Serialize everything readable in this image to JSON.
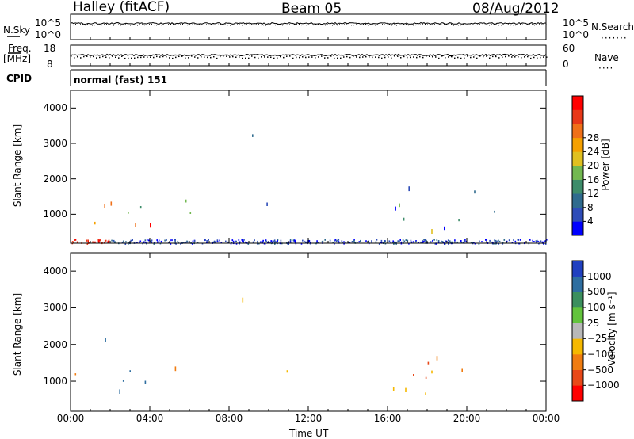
{
  "header": {
    "station": "Halley (fitACF)",
    "beam": "Beam 05",
    "date": "08/Aug/2012"
  },
  "strip_labels": {
    "nsky": "N.Sky",
    "nsky_ticks": [
      "10^5",
      "10^0"
    ],
    "nsearch": "N.Search",
    "freq_line1": "Freq.",
    "freq_line2": "[MHz]",
    "freq_ticks": [
      "18",
      "8"
    ],
    "nave": "Nave",
    "nave_ticks": [
      "60",
      "0"
    ],
    "cpid": "CPID",
    "cpid_value": "normal (fast) 151"
  },
  "chart_data": [
    {
      "type": "heatmap",
      "title": "",
      "xlabel": "",
      "ylabel": "Slant Range [km]",
      "x_ticks": [
        "00:00",
        "04:00",
        "08:00",
        "12:00",
        "16:00",
        "20:00",
        "00:00"
      ],
      "xlim_hours": [
        0,
        24
      ],
      "y_ticks": [
        1000,
        2000,
        3000,
        4000
      ],
      "ylim": [
        180,
        4500
      ],
      "colorbar": {
        "label": "Power [dB]",
        "ticks": [
          "4",
          "8",
          "12",
          "16",
          "20",
          "24",
          "28"
        ],
        "range": [
          0,
          30
        ],
        "colors": [
          "#0000ff",
          "#2e4cb8",
          "#2f6b8e",
          "#3d8c6a",
          "#72b850",
          "#e0c020",
          "#f5a000",
          "#f07018",
          "#e83818",
          "#ff0000"
        ]
      },
      "scatter_regions": [
        {
          "t": [
            0.2,
            1.6
          ],
          "r": [
            600,
            1500
          ],
          "level": 0.55
        },
        {
          "t": [
            1.6,
            3.2
          ],
          "r": [
            600,
            2200
          ],
          "level": 0.6
        },
        {
          "t": [
            2.6,
            4.6
          ],
          "r": [
            700,
            1400
          ],
          "level": 0.75
        },
        {
          "t": [
            3.2,
            6.4
          ],
          "r": [
            700,
            1500
          ],
          "level": 0.45
        },
        {
          "t": [
            8.6,
            9.5
          ],
          "r": [
            3000,
            3500
          ],
          "level": 0.2
        },
        {
          "t": [
            9.6,
            11.8
          ],
          "r": [
            800,
            1400
          ],
          "level": 0.4
        },
        {
          "t": [
            16.2,
            22.2
          ],
          "r": [
            500,
            1800
          ],
          "level": 0.3
        }
      ],
      "ground_scatter_band": {
        "t": [
          0,
          24
        ],
        "r": [
          180,
          300
        ]
      }
    },
    {
      "type": "heatmap",
      "title": "",
      "xlabel": "Time UT",
      "ylabel": "Slant Range [km]",
      "x_ticks": [
        "00:00",
        "04:00",
        "08:00",
        "12:00",
        "16:00",
        "20:00",
        "00:00"
      ],
      "xlim_hours": [
        0,
        24
      ],
      "y_ticks": [
        1000,
        2000,
        3000,
        4000
      ],
      "ylim": [
        180,
        4500
      ],
      "colorbar": {
        "label": "Velocity [m s⁻¹]",
        "ticks": [
          "1000",
          "500",
          "100",
          "25",
          "−25",
          "−100",
          "−500",
          "−1000"
        ],
        "colors": [
          "#2040c0",
          "#2e6ea0",
          "#3b8f5e",
          "#62c33c",
          "#b8b8b8",
          "#f5b800",
          "#f07c10",
          "#e84818",
          "#ff0000"
        ]
      },
      "scatter_regions": [
        {
          "t": [
            0.2,
            1.6
          ],
          "r": [
            600,
            1500
          ],
          "sign": "mixed"
        },
        {
          "t": [
            1.6,
            3.2
          ],
          "r": [
            600,
            2200
          ],
          "sign": "mixed"
        },
        {
          "t": [
            2.6,
            6.4
          ],
          "r": [
            700,
            1500
          ],
          "sign": "mixed"
        },
        {
          "t": [
            8.6,
            9.5
          ],
          "r": [
            3000,
            3500
          ],
          "sign": "negative"
        },
        {
          "t": [
            9.6,
            11.8
          ],
          "r": [
            800,
            1400
          ],
          "sign": "negative"
        },
        {
          "t": [
            16.2,
            22.2
          ],
          "r": [
            1000,
            1900
          ],
          "sign": "negative"
        },
        {
          "t": [
            16.2,
            22.2
          ],
          "r": [
            500,
            1000
          ],
          "sign": "weak"
        }
      ]
    }
  ]
}
